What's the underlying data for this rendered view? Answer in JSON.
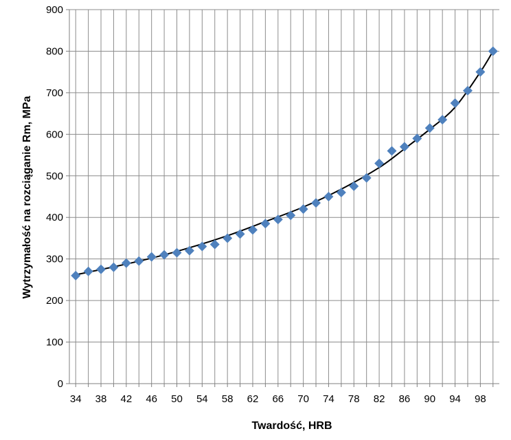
{
  "chart_data": {
    "type": "scatter",
    "title": "",
    "xlabel": "Twardość, HRB",
    "ylabel": "Wytrzymałość na rozciąganie Rm, MPa",
    "xlim": [
      33,
      101
    ],
    "ylim": [
      0,
      900
    ],
    "x_ticks": [
      34,
      38,
      42,
      46,
      50,
      54,
      58,
      62,
      66,
      70,
      74,
      78,
      82,
      86,
      90,
      94,
      98
    ],
    "y_ticks": [
      0,
      100,
      200,
      300,
      400,
      500,
      600,
      700,
      800,
      900
    ],
    "x_grid_step": 2,
    "grid": true,
    "legend": "none",
    "marker": "diamond",
    "marker_color": "#4f81bd",
    "trendline_color": "#000000",
    "trendline": "exponential",
    "series": [
      {
        "x": [
          34,
          36,
          38,
          40,
          42,
          44,
          46,
          48,
          50,
          52,
          54,
          56,
          58,
          60,
          62,
          64,
          66,
          68,
          70,
          72,
          74,
          76,
          78,
          80,
          82,
          84,
          86,
          88,
          90,
          92,
          94,
          96,
          98,
          100
        ],
        "values": [
          260,
          270,
          275,
          280,
          290,
          295,
          305,
          310,
          315,
          320,
          330,
          335,
          350,
          360,
          370,
          385,
          395,
          405,
          420,
          435,
          450,
          460,
          475,
          495,
          530,
          560,
          570,
          590,
          615,
          635,
          675,
          705,
          750,
          800
        ]
      }
    ],
    "trend_points": {
      "x": [
        34,
        40,
        46,
        52,
        58,
        64,
        70,
        76,
        82,
        86,
        90,
        94,
        98,
        100
      ],
      "values": [
        262,
        281,
        302,
        327,
        356,
        390,
        425,
        468,
        520,
        565,
        612,
        665,
        750,
        800
      ]
    }
  }
}
